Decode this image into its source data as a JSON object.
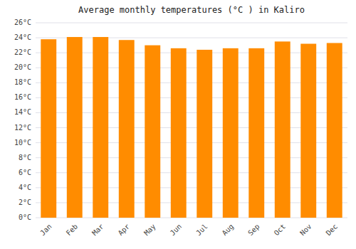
{
  "chart_data": {
    "type": "bar",
    "title": "Average monthly temperatures (°C ) in Kaliro",
    "categories": [
      "Jan",
      "Feb",
      "Mar",
      "Apr",
      "May",
      "Jun",
      "Jul",
      "Aug",
      "Sep",
      "Oct",
      "Nov",
      "Dec"
    ],
    "values": [
      23.8,
      24.1,
      24.1,
      23.7,
      23.0,
      22.6,
      22.4,
      22.6,
      22.6,
      23.5,
      23.2,
      23.3
    ],
    "color": "#FF8C00",
    "ylim": [
      0,
      26
    ],
    "yticks": [
      {
        "value": 0,
        "label": "0°C"
      },
      {
        "value": 2,
        "label": "2°C"
      },
      {
        "value": 4,
        "label": "4°C"
      },
      {
        "value": 6,
        "label": "6°C"
      },
      {
        "value": 8,
        "label": "8°C"
      },
      {
        "value": 10,
        "label": "10°C"
      },
      {
        "value": 12,
        "label": "12°C"
      },
      {
        "value": 14,
        "label": "14°C"
      },
      {
        "value": 16,
        "label": "16°C"
      },
      {
        "value": 18,
        "label": "18°C"
      },
      {
        "value": 20,
        "label": "20°C"
      },
      {
        "value": 22,
        "label": "22°C"
      },
      {
        "value": 24,
        "label": "24°C"
      },
      {
        "value": 26,
        "label": "26°C"
      }
    ],
    "grid": true
  }
}
